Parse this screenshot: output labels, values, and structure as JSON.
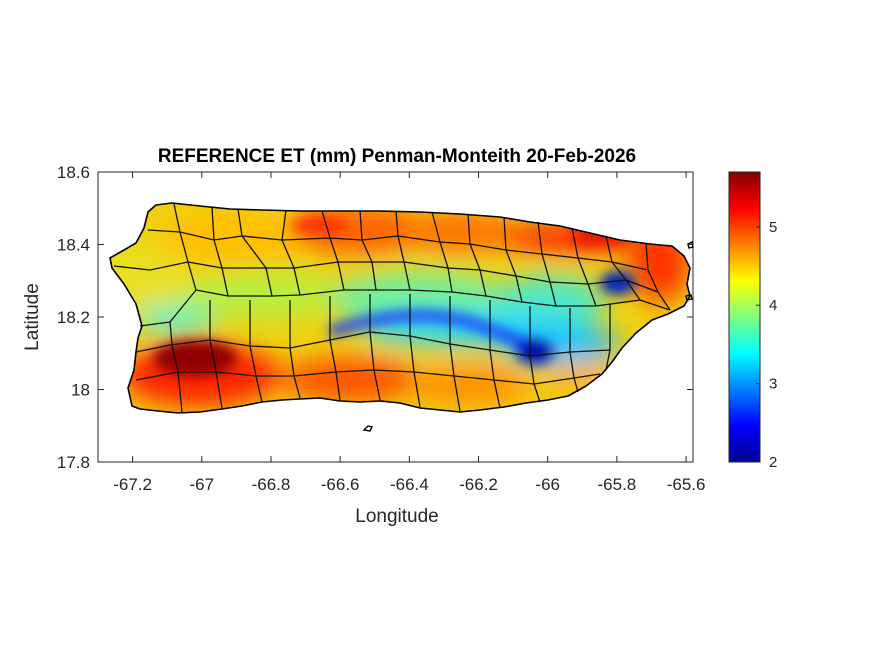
{
  "chart_data": {
    "type": "heatmap",
    "title": "REFERENCE ET (mm) Penman-Monteith 20-Feb-2026",
    "xlabel": "Longitude",
    "ylabel": "Latitude",
    "xlim": [
      -67.3,
      -65.58
    ],
    "ylim": [
      17.8,
      18.6
    ],
    "x_ticks": [
      "-67.2",
      "-67",
      "-66.8",
      "-66.6",
      "-66.4",
      "-66.2",
      "-66",
      "-65.8",
      "-65.6"
    ],
    "x_tick_values": [
      -67.2,
      -67.0,
      -66.8,
      -66.6,
      -66.4,
      -66.2,
      -66.0,
      -65.8,
      -65.6
    ],
    "y_ticks": [
      "18.6",
      "18.4",
      "18.2",
      "18",
      "17.8"
    ],
    "y_tick_values": [
      18.6,
      18.4,
      18.2,
      18.0,
      17.8
    ],
    "colorbar": {
      "colormap": "jet",
      "range": [
        2,
        5.7
      ],
      "ticks": [
        "5",
        "4",
        "3",
        "2"
      ],
      "tick_values": [
        5,
        4,
        3,
        2
      ]
    },
    "region": "Puerto Rico",
    "value_samples": [
      {
        "lon": -67.05,
        "lat": 18.09,
        "value": 5.6
      },
      {
        "lon": -66.5,
        "lat": 18.38,
        "value": 5.0
      },
      {
        "lon": -65.85,
        "lat": 18.37,
        "value": 5.2
      },
      {
        "lon": -67.1,
        "lat": 18.4,
        "value": 4.2
      },
      {
        "lon": -66.55,
        "lat": 18.17,
        "value": 2.9
      },
      {
        "lon": -66.05,
        "lat": 18.1,
        "value": 2.5
      },
      {
        "lon": -65.8,
        "lat": 18.29,
        "value": 2.7
      },
      {
        "lon": -66.6,
        "lat": 18.01,
        "value": 5.1
      },
      {
        "lon": -66.2,
        "lat": 18.0,
        "value": 4.8
      }
    ],
    "grid": false
  }
}
